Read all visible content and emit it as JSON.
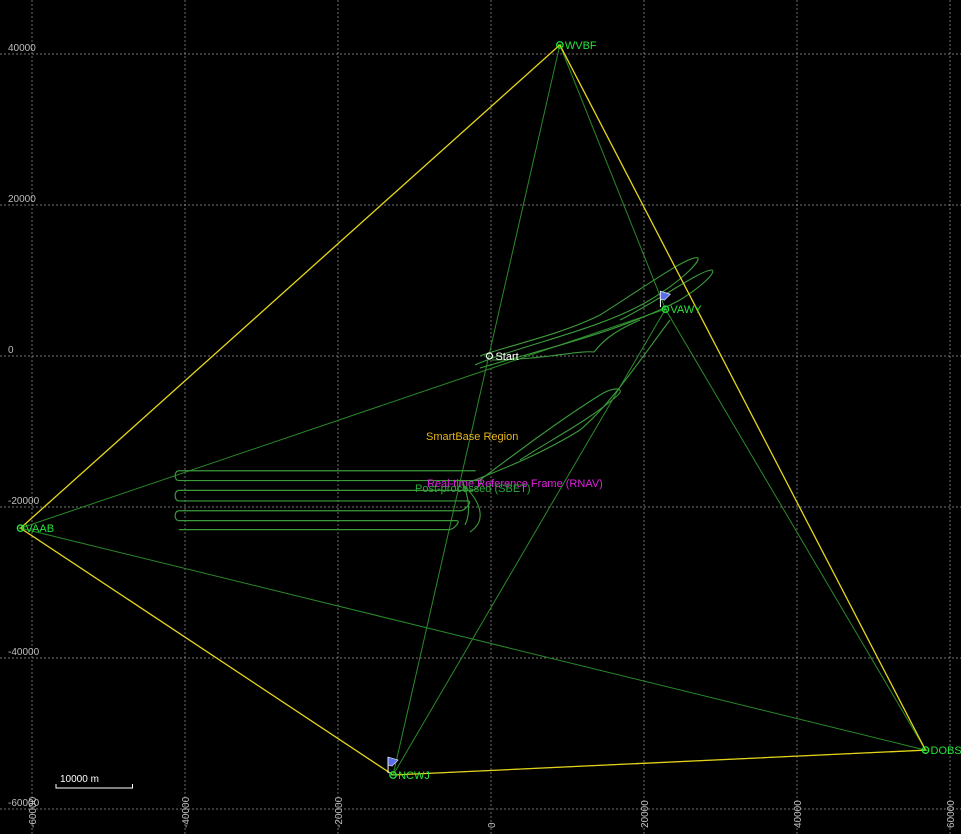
{
  "map": {
    "x_ticks": [
      "-60000",
      "-40000",
      "-20000",
      "0",
      "20000",
      "40000",
      "60000"
    ],
    "y_ticks": [
      "40000",
      "20000",
      "0",
      "-20000",
      "-40000",
      "-60000"
    ],
    "grid": true,
    "background_color": "#000000",
    "grid_color": "#9a9a9a"
  },
  "stations": [
    {
      "id": "WVBF",
      "label": "WVBF",
      "x": 9000,
      "y": 41200,
      "label_side": "right"
    },
    {
      "id": "VAWY",
      "label": "VAWY",
      "x": 22800,
      "y": 6200,
      "label_side": "right"
    },
    {
      "id": "VAAB",
      "label": "VAAB",
      "x": -61500,
      "y": -22800,
      "label_side": "right"
    },
    {
      "id": "NCWJ",
      "label": "NCWJ",
      "x": -12800,
      "y": -55500,
      "label_side": "right"
    },
    {
      "id": "DOBS",
      "label": "DOBS",
      "x": 56800,
      "y": -52200,
      "label_side": "right"
    }
  ],
  "flags": [
    {
      "station": "VAWY",
      "icon": "flag-icon"
    },
    {
      "station": "NCWJ",
      "icon": "flag-icon"
    }
  ],
  "start": {
    "label": "Start",
    "x": -200,
    "y": 0
  },
  "smartbase_region": {
    "label": "SmartBase Region",
    "color": "#e6d21a",
    "polygon": [
      "WVBF",
      "DOBS",
      "NCWJ",
      "VAAB"
    ]
  },
  "baselines": {
    "color": "#2a8a2a",
    "pairs": [
      [
        "WVBF",
        "VAAB"
      ],
      [
        "WVBF",
        "NCWJ"
      ],
      [
        "WVBF",
        "DOBS"
      ],
      [
        "WVBF",
        "VAWY"
      ],
      [
        "VAWY",
        "VAAB"
      ],
      [
        "VAWY",
        "NCWJ"
      ],
      [
        "VAWY",
        "DOBS"
      ],
      [
        "VAAB",
        "DOBS"
      ],
      [
        "VAAB",
        "NCWJ"
      ],
      [
        "NCWJ",
        "DOBS"
      ]
    ]
  },
  "legend_labels": {
    "rnav": {
      "label": "Real-time Reference Frame (RNAV)",
      "color": "#e020e0"
    },
    "sbet": {
      "label": "Post-processed (SBET)",
      "color": "#2aa83a"
    },
    "smartbase": {
      "label": "SmartBase Region",
      "color": "#e6b41a"
    }
  },
  "trajectory": {
    "color": "#3c9a3c",
    "lines": [
      {
        "y": -15200,
        "x_start": -40800,
        "x_end": -2000
      },
      {
        "y": -16500,
        "x_start": -40800,
        "x_end": -1500
      },
      {
        "y": -17800,
        "x_start": -40800,
        "x_end": -2500
      },
      {
        "y": -19200,
        "x_start": -40800,
        "x_end": -3000
      },
      {
        "y": -20500,
        "x_start": -40800,
        "x_end": -4000
      },
      {
        "y": -21800,
        "x_start": -40800,
        "x_end": -4500
      },
      {
        "y": -23000,
        "x_start": -40800,
        "x_end": -5500
      }
    ]
  },
  "scale_bar": {
    "label": "10000 m",
    "length_m": 10000
  }
}
